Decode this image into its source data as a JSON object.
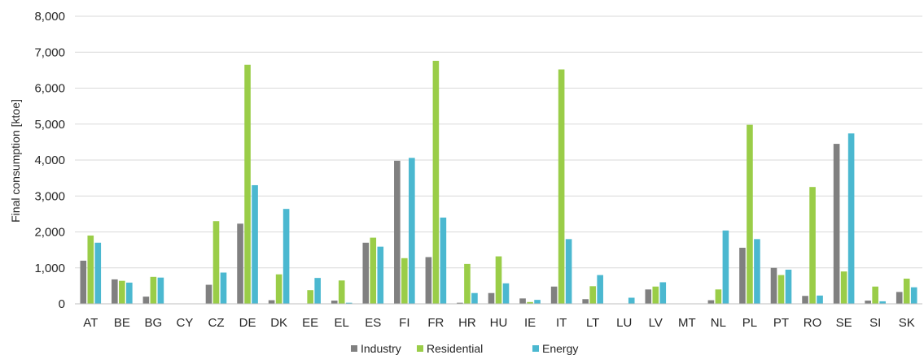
{
  "chart_data": {
    "type": "bar",
    "title": "",
    "xlabel": "",
    "ylabel": "Final consumption [ktoe]",
    "ylim": [
      0,
      8000
    ],
    "yticks": [
      0,
      1000,
      2000,
      3000,
      4000,
      5000,
      6000,
      7000,
      8000
    ],
    "ytick_labels": [
      "0",
      "1,000",
      "2,000",
      "3,000",
      "4,000",
      "5,000",
      "6,000",
      "7,000",
      "8,000"
    ],
    "grid": "horizontal",
    "legend_position": "bottom",
    "categories": [
      "AT",
      "BE",
      "BG",
      "CY",
      "CZ",
      "DE",
      "DK",
      "EE",
      "EL",
      "ES",
      "FI",
      "FR",
      "HR",
      "HU",
      "IE",
      "IT",
      "LT",
      "LU",
      "LV",
      "MT",
      "NL",
      "PL",
      "PT",
      "RO",
      "SE",
      "SI",
      "SK"
    ],
    "series": [
      {
        "name": "Industry",
        "color": "#808080",
        "values": [
          1200,
          680,
          200,
          0,
          530,
          2230,
          100,
          0,
          90,
          1700,
          3980,
          1300,
          30,
          300,
          150,
          480,
          130,
          0,
          400,
          0,
          100,
          1560,
          1000,
          220,
          4450,
          90,
          330
        ]
      },
      {
        "name": "Residential",
        "color": "#9ACD48",
        "values": [
          1900,
          640,
          750,
          0,
          2300,
          6650,
          820,
          380,
          650,
          1840,
          1270,
          6760,
          1110,
          1320,
          50,
          6520,
          490,
          0,
          480,
          0,
          400,
          4980,
          800,
          3250,
          900,
          480,
          700
        ]
      },
      {
        "name": "Energy",
        "color": "#4BB8D0",
        "values": [
          1700,
          590,
          730,
          0,
          870,
          3300,
          2640,
          720,
          30,
          1590,
          4060,
          2400,
          300,
          570,
          110,
          1800,
          800,
          170,
          600,
          0,
          2040,
          1800,
          950,
          230,
          4740,
          70,
          460
        ]
      }
    ]
  }
}
